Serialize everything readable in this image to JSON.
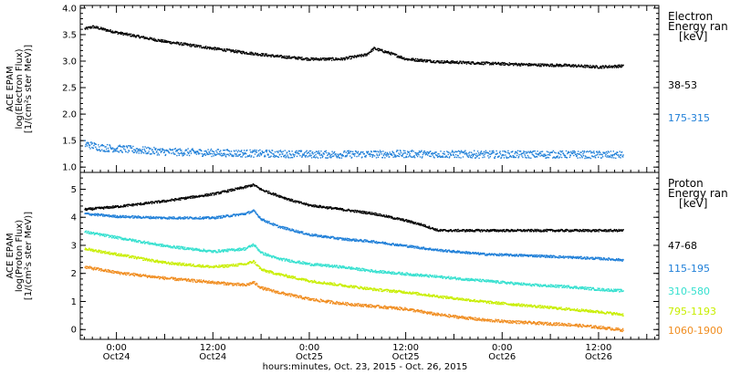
{
  "colors": {
    "frame": "#000000",
    "black_series": "#000000",
    "blue_series": "#1f7fd8",
    "cyan_series": "#35e0cf",
    "yellow_series": "#c8ee00",
    "orange_series": "#f08c1e"
  },
  "x_axis": {
    "title": "hours:minutes, Oct. 23, 2015 - Oct. 26, 2015",
    "ticks": [
      {
        "time": "0:00",
        "date": "Oct24"
      },
      {
        "time": "12:00",
        "date": "Oct24"
      },
      {
        "time": "0:00",
        "date": "Oct25"
      },
      {
        "time": "12:00",
        "date": "Oct25"
      },
      {
        "time": "0:00",
        "date": "Oct26"
      },
      {
        "time": "12:00",
        "date": "Oct26"
      }
    ]
  },
  "chart_data": [
    {
      "type": "scatter",
      "panel": "electron",
      "ylabel": [
        "ACE EPAM",
        "log(Electron Flux)",
        "[1/(cm²s ster MeV)]"
      ],
      "ylim": [
        0.9,
        4.05
      ],
      "yticks": [
        "1.0",
        "1.5",
        "2.0",
        "2.5",
        "3.0",
        "3.5",
        "4.0"
      ],
      "legend_title": [
        "Electron",
        "Energy ran",
        "[keV]"
      ],
      "x_unit": "hours since Oct. 23, 2015 0:00",
      "xlim": [
        19.5,
        91.5
      ],
      "series": [
        {
          "name": "38-53",
          "color_key": "black_series",
          "noise": 0.025,
          "x": [
            20,
            21,
            24,
            30,
            36,
            40,
            44,
            48,
            50,
            52,
            55,
            56,
            58,
            60,
            64,
            68,
            72,
            76,
            80,
            84,
            87
          ],
          "values": [
            3.62,
            3.66,
            3.55,
            3.38,
            3.25,
            3.17,
            3.1,
            3.05,
            3.05,
            3.05,
            3.13,
            3.25,
            3.16,
            3.05,
            3.0,
            2.98,
            2.96,
            2.94,
            2.93,
            2.9,
            2.92
          ]
        },
        {
          "name": "175-315",
          "color_key": "blue_series",
          "noise": 0.07,
          "x": [
            20,
            22,
            30,
            40,
            50,
            60,
            70,
            80,
            87
          ],
          "values": [
            1.45,
            1.38,
            1.3,
            1.27,
            1.25,
            1.26,
            1.25,
            1.25,
            1.24
          ]
        }
      ]
    },
    {
      "type": "scatter",
      "panel": "proton",
      "ylabel": [
        "ACE EPAM",
        "log(Proton Flux)",
        "[1/(cm²s ster MeV)]"
      ],
      "ylim": [
        -0.35,
        5.6
      ],
      "yticks": [
        "0",
        "1",
        "2",
        "3",
        "4",
        "5"
      ],
      "legend_title": [
        "Proton",
        "Energy ran",
        "[keV]"
      ],
      "x_unit": "hours since Oct. 23, 2015 0:00",
      "xlim": [
        19.5,
        91.5
      ],
      "series": [
        {
          "name": "47-68",
          "color_key": "black_series",
          "noise": 0.04,
          "x": [
            20,
            24,
            30,
            36,
            40,
            41,
            42,
            44,
            46,
            48,
            52,
            56,
            60,
            62,
            64,
            66,
            70,
            74,
            78,
            82,
            87
          ],
          "values": [
            4.3,
            4.4,
            4.6,
            4.85,
            5.1,
            5.18,
            5.0,
            4.8,
            4.6,
            4.45,
            4.3,
            4.15,
            3.9,
            3.75,
            3.55,
            3.55,
            3.55,
            3.55,
            3.55,
            3.55,
            3.55
          ]
        },
        {
          "name": "115-195",
          "color_key": "blue_series",
          "noise": 0.04,
          "x": [
            20,
            24,
            30,
            36,
            40,
            41,
            42,
            44,
            48,
            52,
            56,
            60,
            64,
            70,
            76,
            80,
            84,
            87
          ],
          "values": [
            4.15,
            4.05,
            4.0,
            4.0,
            4.15,
            4.25,
            3.95,
            3.7,
            3.4,
            3.25,
            3.15,
            3.0,
            2.85,
            2.7,
            2.65,
            2.6,
            2.55,
            2.5
          ]
        },
        {
          "name": "310-580",
          "color_key": "cyan_series",
          "noise": 0.045,
          "x": [
            20,
            24,
            30,
            36,
            40,
            41,
            42,
            44,
            48,
            52,
            56,
            60,
            64,
            70,
            76,
            80,
            84,
            87
          ],
          "values": [
            3.5,
            3.3,
            3.0,
            2.8,
            2.9,
            3.05,
            2.75,
            2.55,
            2.35,
            2.25,
            2.1,
            2.0,
            1.9,
            1.75,
            1.6,
            1.55,
            1.45,
            1.4
          ]
        },
        {
          "name": "795-1193",
          "color_key": "yellow_series",
          "noise": 0.045,
          "x": [
            20,
            24,
            30,
            36,
            40,
            41,
            42,
            44,
            48,
            52,
            56,
            60,
            64,
            70,
            76,
            80,
            84,
            87
          ],
          "values": [
            2.9,
            2.7,
            2.4,
            2.25,
            2.35,
            2.45,
            2.15,
            2.0,
            1.75,
            1.6,
            1.45,
            1.35,
            1.2,
            1.0,
            0.85,
            0.75,
            0.65,
            0.55
          ]
        },
        {
          "name": "1060-1900",
          "color_key": "orange_series",
          "noise": 0.05,
          "x": [
            20,
            24,
            30,
            36,
            40,
            41,
            42,
            44,
            48,
            52,
            56,
            60,
            64,
            70,
            76,
            80,
            84,
            87
          ],
          "values": [
            2.25,
            2.05,
            1.85,
            1.7,
            1.6,
            1.7,
            1.5,
            1.35,
            1.1,
            0.95,
            0.85,
            0.75,
            0.55,
            0.35,
            0.25,
            0.2,
            0.1,
            0.0
          ]
        }
      ]
    }
  ]
}
